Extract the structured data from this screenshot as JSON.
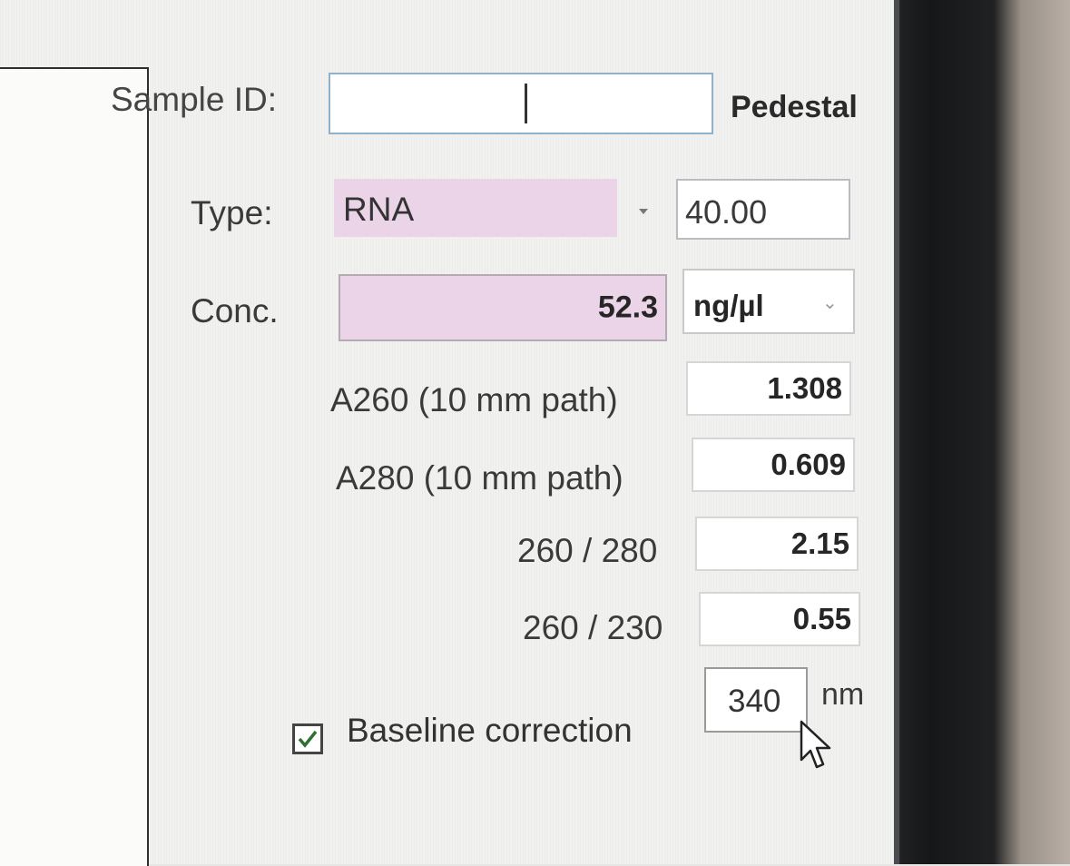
{
  "sample_id": {
    "label": "Sample ID:",
    "value": ""
  },
  "mode": {
    "label": "Pedestal"
  },
  "type": {
    "label": "Type:",
    "value": "RNA",
    "factor": "40.00"
  },
  "conc": {
    "label": "Conc.",
    "value": "52.3",
    "unit": "ng/µl"
  },
  "a260": {
    "label": "A260 (10 mm path)",
    "value": "1.308"
  },
  "a280": {
    "label": "A280 (10 mm path)",
    "value": "0.609"
  },
  "ratio_260_280": {
    "label": "260 / 280",
    "value": "2.15"
  },
  "ratio_260_230": {
    "label": "260 / 230",
    "value": "0.55"
  },
  "baseline": {
    "label": "Baseline correction",
    "checked": true,
    "value": "340",
    "unit": "nm"
  },
  "colors": {
    "pink_field": "#ecd4e8",
    "focus_border": "#8fb1cc",
    "text": "#3a3a3a"
  },
  "icons": [
    "checkbox-checked-icon",
    "dropdown-arrow-icon",
    "chevron-down-icon",
    "mouse-cursor-icon"
  ]
}
